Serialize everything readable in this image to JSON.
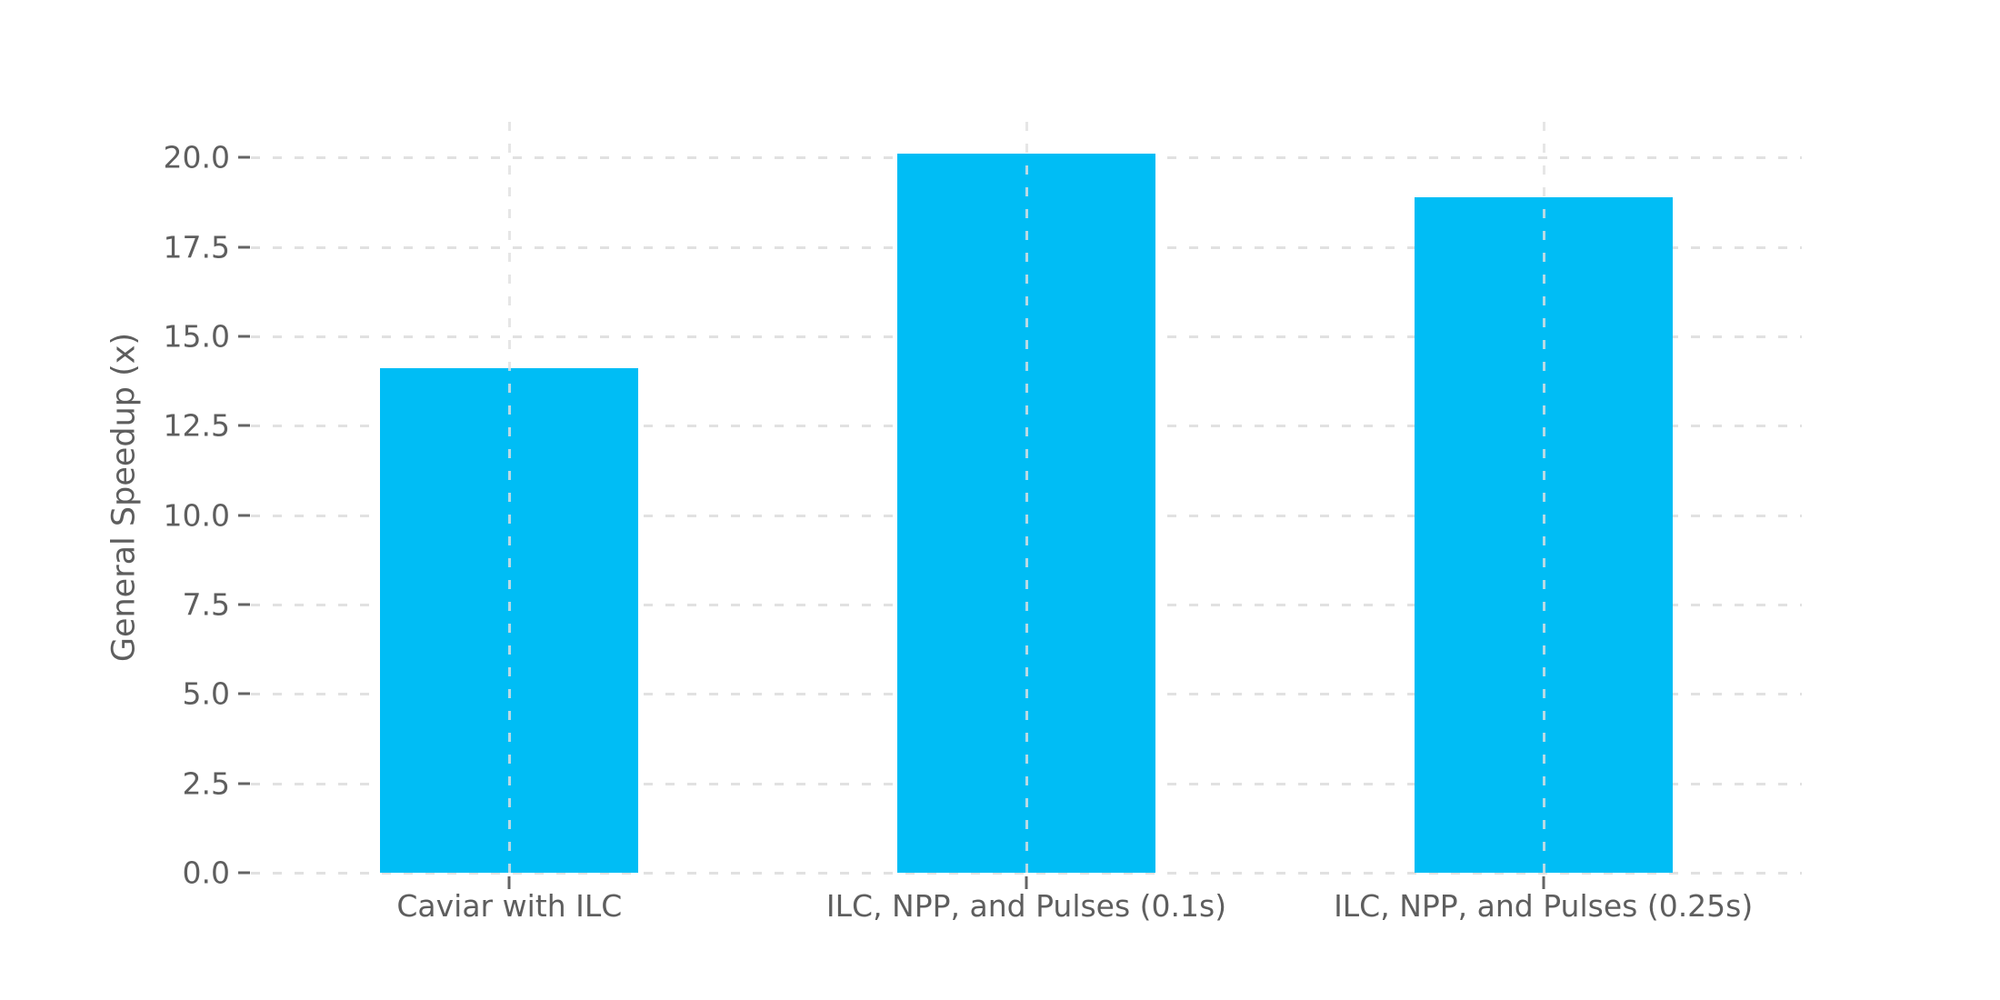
{
  "chart_data": {
    "type": "bar",
    "categories": [
      "Caviar with ILC",
      "ILC, NPP, and Pulses (0.1s)",
      "ILC, NPP, and Pulses (0.25s)"
    ],
    "values": [
      14.1,
      20.1,
      18.9
    ],
    "title": "",
    "xlabel": "",
    "ylabel": "General Speedup (x)",
    "ylim": [
      0,
      21
    ],
    "yticks": [
      0.0,
      2.5,
      5.0,
      7.5,
      10.0,
      12.5,
      15.0,
      17.5,
      20.0
    ],
    "ytick_labels": [
      "0.0",
      "2.5",
      "5.0",
      "7.5",
      "10.0",
      "12.5",
      "15.0",
      "17.5",
      "20.0"
    ],
    "legend": "none",
    "grid": "dashed horizontal lines at every y tick; dashed vertical line at each category center",
    "bar_width_fraction": 0.5,
    "colors": {
      "bar": "#00bdf5",
      "grid": "#e1e1e1",
      "tick_text": "#5e5e5e",
      "background": "#ffffff"
    }
  }
}
